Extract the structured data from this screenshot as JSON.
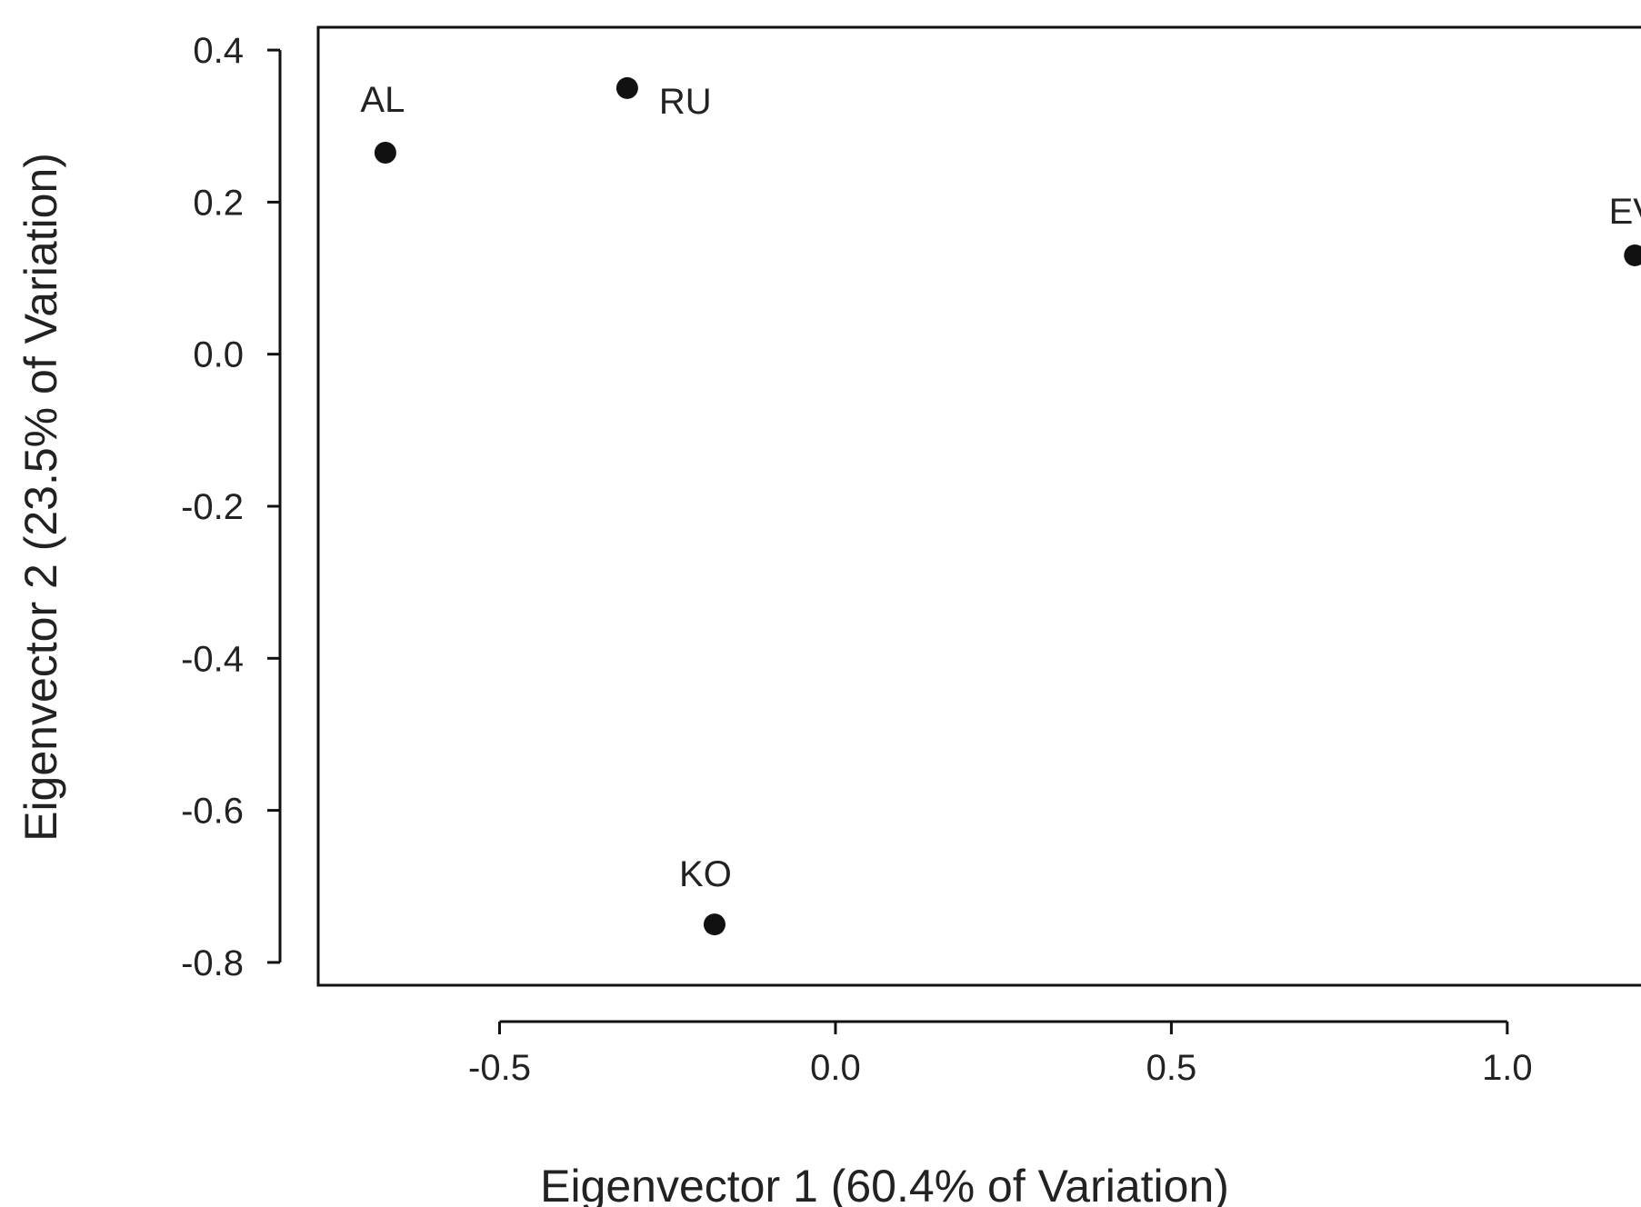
{
  "chart_data": {
    "type": "scatter",
    "title": "",
    "xlabel": "Eigenvector 1 (60.4% of Variation)",
    "ylabel": "Eigenvector 2 (23.5% of Variation)",
    "xticks": [
      "-0.5",
      "0.0",
      "0.5",
      "1.0"
    ],
    "yticks": [
      "0.4",
      "0.2",
      "0.0",
      "-0.2",
      "-0.4",
      "-0.6",
      "-0.8"
    ],
    "xlim": [
      -0.77,
      1.26
    ],
    "ylim": [
      -0.83,
      0.43
    ],
    "grid": false,
    "legend": "none",
    "points": [
      {
        "label": "AL",
        "x": -0.67,
        "y": 0.265
      },
      {
        "label": "RU",
        "x": -0.31,
        "y": 0.35
      },
      {
        "label": "KO",
        "x": -0.18,
        "y": -0.75
      },
      {
        "label": "EV",
        "x": 1.19,
        "y": 0.13
      }
    ],
    "colors": {
      "axis": "#111111",
      "point": "#111111",
      "text": "#222222"
    }
  }
}
